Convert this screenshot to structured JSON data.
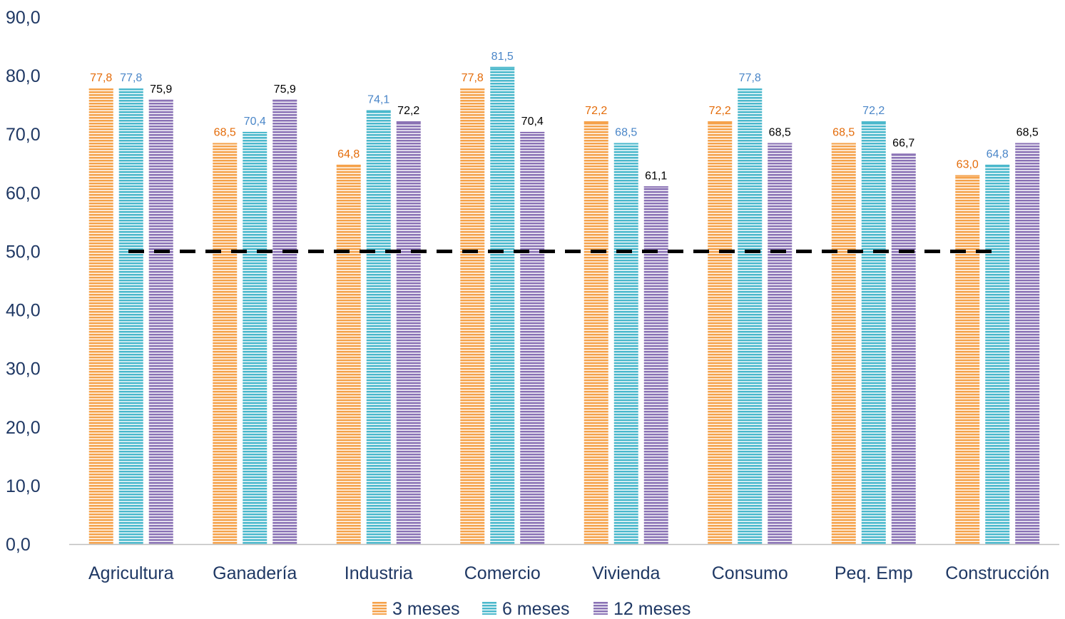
{
  "chart_data": {
    "type": "bar",
    "title": "",
    "xlabel": "",
    "ylabel": "",
    "ylim": [
      0,
      90
    ],
    "yticks": [
      "0,0",
      "10,0",
      "20,0",
      "30,0",
      "40,0",
      "50,0",
      "60,0",
      "70,0",
      "80,0",
      "90,0"
    ],
    "grid": false,
    "legend_position": "bottom",
    "reference_line": {
      "value": 50,
      "style": "dashed",
      "color": "#000000"
    },
    "categories": [
      "Agricultura",
      "Ganadería",
      "Industria",
      "Comercio",
      "Vivienda",
      "Consumo",
      "Peq. Emp",
      "Construcción"
    ],
    "series": [
      {
        "name": "3 meses",
        "color": "#f5a24b",
        "label_color": "#e46c0a",
        "values": [
          77.8,
          68.5,
          64.8,
          77.8,
          72.2,
          72.2,
          68.5,
          63.0
        ],
        "labels": [
          "77,8",
          "68,5",
          "64,8",
          "77,8",
          "72,2",
          "72,2",
          "68,5",
          "63,0"
        ]
      },
      {
        "name": "6 meses",
        "color": "#4bb8cc",
        "label_color": "#4a86c8",
        "values": [
          77.8,
          70.4,
          74.1,
          81.5,
          68.5,
          77.8,
          72.2,
          64.8
        ],
        "labels": [
          "77,8",
          "70,4",
          "74,1",
          "81,5",
          "68,5",
          "77,8",
          "72,2",
          "64,8"
        ]
      },
      {
        "name": "12 meses",
        "color": "#8a72b5",
        "label_color": "#000000",
        "values": [
          75.9,
          75.9,
          72.2,
          70.4,
          61.1,
          68.5,
          66.7,
          68.5
        ],
        "labels": [
          "75,9",
          "75,9",
          "72,2",
          "70,4",
          "61,1",
          "68,5",
          "66,7",
          "68,5"
        ]
      }
    ]
  }
}
